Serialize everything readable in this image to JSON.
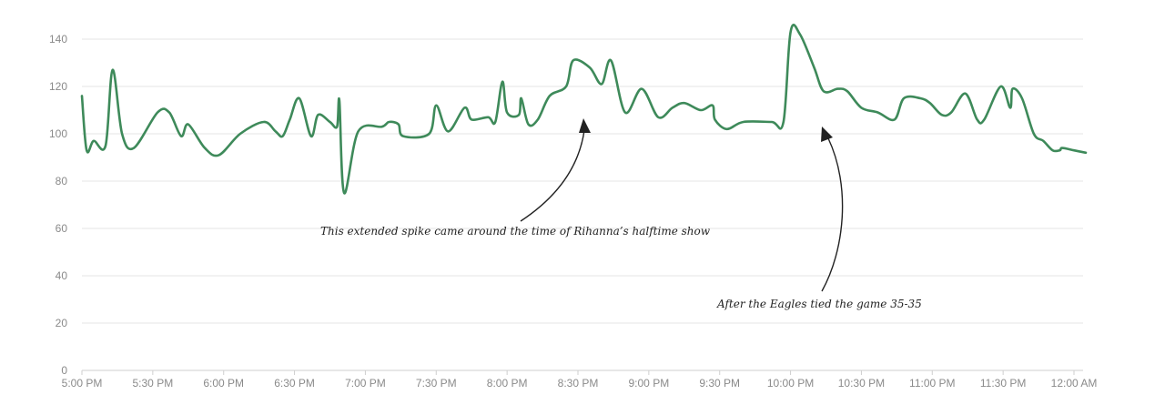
{
  "chart_data": {
    "type": "line",
    "title": "",
    "xlabel": "",
    "ylabel": "",
    "ylim": [
      0,
      145
    ],
    "yticks": [
      0,
      20,
      40,
      60,
      80,
      100,
      120,
      140
    ],
    "xlim": [
      "5:00 PM",
      "12:00 AM"
    ],
    "xticks": [
      "5:00 PM",
      "5:30 PM",
      "6:00 PM",
      "6:30 PM",
      "7:00 PM",
      "7:30 PM",
      "8:00 PM",
      "8:30 PM",
      "9:00 PM",
      "9:30 PM",
      "10:00 PM",
      "10:30 PM",
      "11:00 PM",
      "11:30 PM",
      "12:00 AM"
    ],
    "grid": true,
    "color": "#3e8a5a",
    "series": [
      {
        "values": [
          [
            "5:00 PM",
            116
          ],
          [
            "5:02 PM",
            93
          ],
          [
            "5:05 PM",
            97
          ],
          [
            "5:10 PM",
            95
          ],
          [
            "5:13 PM",
            127
          ],
          [
            "5:17 PM",
            100
          ],
          [
            "5:22 PM",
            94
          ],
          [
            "5:32 PM",
            109
          ],
          [
            "5:37 PM",
            109
          ],
          [
            "5:42 PM",
            99
          ],
          [
            "5:45 PM",
            104
          ],
          [
            "5:52 PM",
            94
          ],
          [
            "5:58 PM",
            91
          ],
          [
            "6:07 PM",
            100
          ],
          [
            "6:17 PM",
            105
          ],
          [
            "6:22 PM",
            101
          ],
          [
            "6:25 PM",
            99
          ],
          [
            "6:28 PM",
            106
          ],
          [
            "6:32 PM",
            115
          ],
          [
            "6:37 PM",
            99
          ],
          [
            "6:40 PM",
            108
          ],
          [
            "6:45 PM",
            105
          ],
          [
            "6:48 PM",
            103
          ],
          [
            "6:49 PM",
            114
          ],
          [
            "6:51 PM",
            75
          ],
          [
            "6:57 PM",
            101
          ],
          [
            "7:07 PM",
            103
          ],
          [
            "7:10 PM",
            105
          ],
          [
            "7:14 PM",
            104
          ],
          [
            "7:16 PM",
            99
          ],
          [
            "7:27 PM",
            100
          ],
          [
            "7:30 PM",
            112
          ],
          [
            "7:35 PM",
            101
          ],
          [
            "7:42 PM",
            111
          ],
          [
            "7:45 PM",
            106
          ],
          [
            "7:52 PM",
            107
          ],
          [
            "7:55 PM",
            105
          ],
          [
            "7:58 PM",
            122
          ],
          [
            "8:00 PM",
            109
          ],
          [
            "8:05 PM",
            108
          ],
          [
            "8:06 PM",
            115
          ],
          [
            "8:09 PM",
            104
          ],
          [
            "8:13 PM",
            106
          ],
          [
            "8:18 PM",
            116
          ],
          [
            "8:25 PM",
            120
          ],
          [
            "8:28 PM",
            131
          ],
          [
            "8:35 PM",
            128
          ],
          [
            "8:40 PM",
            121
          ],
          [
            "8:44 PM",
            131
          ],
          [
            "8:50 PM",
            109
          ],
          [
            "8:57 PM",
            119
          ],
          [
            "9:04 PM",
            107
          ],
          [
            "9:10 PM",
            111
          ],
          [
            "9:15 PM",
            113
          ],
          [
            "9:22 PM",
            110
          ],
          [
            "9:27 PM",
            112
          ],
          [
            "9:28 PM",
            106
          ],
          [
            "9:33 PM",
            102
          ],
          [
            "9:40 PM",
            105
          ],
          [
            "9:52 PM",
            105
          ],
          [
            "9:57 PM",
            105
          ],
          [
            "10:00 PM",
            143
          ],
          [
            "10:04 PM",
            142
          ],
          [
            "10:10 PM",
            128
          ],
          [
            "10:14 PM",
            118
          ],
          [
            "10:20 PM",
            119
          ],
          [
            "10:24 PM",
            118
          ],
          [
            "10:30 PM",
            111
          ],
          [
            "10:37 PM",
            109
          ],
          [
            "10:44 PM",
            106
          ],
          [
            "10:48 PM",
            115
          ],
          [
            "10:55 PM",
            115
          ],
          [
            "10:59 PM",
            113
          ],
          [
            "11:04 PM",
            108
          ],
          [
            "11:08 PM",
            109
          ],
          [
            "11:14 PM",
            117
          ],
          [
            "11:19 PM",
            106
          ],
          [
            "11:22 PM",
            106
          ],
          [
            "11:29 PM",
            120
          ],
          [
            "11:33 PM",
            111
          ],
          [
            "11:34 PM",
            119
          ],
          [
            "11:38 PM",
            115
          ],
          [
            "11:43 PM",
            100
          ],
          [
            "11:47 PM",
            97
          ],
          [
            "11:51 PM",
            93
          ],
          [
            "11:54 PM",
            93
          ],
          [
            "11:55 PM",
            94
          ],
          [
            "12:00 AM",
            93
          ],
          [
            "12:05 AM",
            92
          ]
        ]
      }
    ],
    "annotations": [
      {
        "text": "This extended spike came around the time of Rihanna’s halftime show",
        "target": [
          "8:32 PM",
          103
        ]
      },
      {
        "text": "After the Eagles tied the game 35-35",
        "target": [
          "10:14 PM",
          101
        ]
      }
    ]
  }
}
